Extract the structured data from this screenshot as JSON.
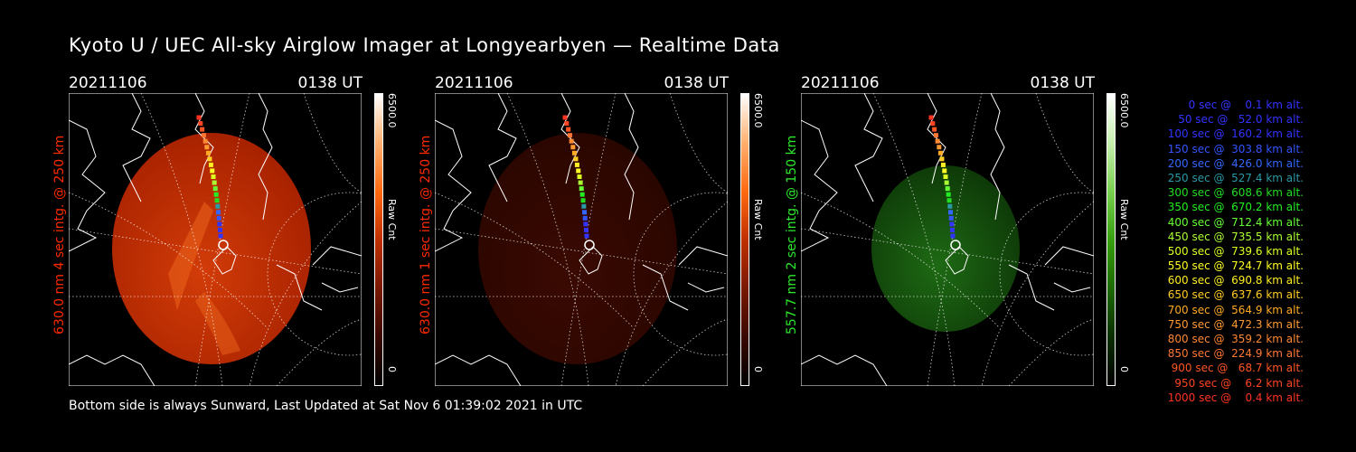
{
  "title": "Kyoto U / UEC All-sky Airglow Imager at Longyearbyen — Realtime Data",
  "footer": "Bottom side is always Sunward, Last Updated at Sat Nov  6 01:39:02 2021 in UTC",
  "panels": [
    {
      "date": "20211106",
      "time": "0138 UT",
      "ylabel": "630.0 nm 4 sec intg. @ 250 km",
      "label_color": "#ff2a00",
      "cbar_max": "6500.0",
      "cbar_unit": "Raw Cnt",
      "cbar_min": "0",
      "colormap": "red-bright"
    },
    {
      "date": "20211106",
      "time": "0138 UT",
      "ylabel": "630.0 nm 1 sec intg. @ 250 km",
      "label_color": "#ff2a00",
      "cbar_max": "6500.0",
      "cbar_unit": "Raw Cnt",
      "cbar_min": "0",
      "colormap": "red-dim"
    },
    {
      "date": "20211106",
      "time": "0138 UT",
      "ylabel": "557.7 nm 2 sec intg. @ 150 km",
      "label_color": "#2ee82e",
      "cbar_max": "6500.0",
      "cbar_unit": "Raw Cnt",
      "cbar_min": "0",
      "colormap": "green"
    }
  ],
  "legend": [
    {
      "text": "   0 sec @    0.1 km alt.",
      "color": "#3333ff"
    },
    {
      "text": "  50 sec @   52.0 km alt.",
      "color": "#3333ff"
    },
    {
      "text": " 100 sec @  160.2 km alt.",
      "color": "#3333ff"
    },
    {
      "text": " 150 sec @  303.8 km alt.",
      "color": "#3355ff"
    },
    {
      "text": " 200 sec @  426.0 km alt.",
      "color": "#3366ff"
    },
    {
      "text": " 250 sec @  527.4 km alt.",
      "color": "#2a9aa8"
    },
    {
      "text": " 300 sec @  608.6 km alt.",
      "color": "#22dd22"
    },
    {
      "text": " 350 sec @  670.2 km alt.",
      "color": "#22ee22"
    },
    {
      "text": " 400 sec @  712.4 km alt.",
      "color": "#66ff33"
    },
    {
      "text": " 450 sec @  735.5 km alt.",
      "color": "#aaff33"
    },
    {
      "text": " 500 sec @  739.6 km alt.",
      "color": "#ddff22"
    },
    {
      "text": " 550 sec @  724.7 km alt.",
      "color": "#ffff22"
    },
    {
      "text": " 600 sec @  690.8 km alt.",
      "color": "#ffee22"
    },
    {
      "text": " 650 sec @  637.6 km alt.",
      "color": "#ffcc22"
    },
    {
      "text": " 700 sec @  564.9 km alt.",
      "color": "#ffaa22"
    },
    {
      "text": " 750 sec @  472.3 km alt.",
      "color": "#ff9933"
    },
    {
      "text": " 800 sec @  359.2 km alt.",
      "color": "#ff8833"
    },
    {
      "text": " 850 sec @  224.9 km alt.",
      "color": "#ff7733"
    },
    {
      "text": " 900 sec @   68.7 km alt.",
      "color": "#ff5522"
    },
    {
      "text": " 950 sec @    6.2 km alt.",
      "color": "#ff4422"
    },
    {
      "text": "1000 sec @    0.4 km alt.",
      "color": "#ff3322"
    }
  ]
}
